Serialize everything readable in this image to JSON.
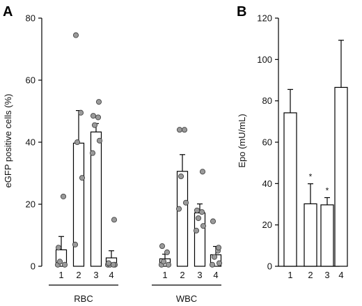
{
  "chart_data": [
    {
      "panel_label": "A",
      "type": "bar",
      "ylabel": "eGFP positive cells (%)",
      "ylim": [
        0,
        80
      ],
      "yticks": [
        0,
        20,
        40,
        60,
        80
      ],
      "groups": [
        {
          "name": "RBC",
          "categories": [
            "1",
            "2",
            "3",
            "4"
          ],
          "means": [
            5.3,
            39.7,
            43.3,
            2.7
          ],
          "sem": [
            4.3,
            10.5,
            2.7,
            2.3
          ],
          "points": [
            [
              0.5,
              0.5,
              1.5,
              22.5,
              6.0
            ],
            [
              7.0,
              28.5,
              40.0,
              49.5,
              74.5
            ],
            [
              36.5,
              40.5,
              45.5,
              48.0,
              48.5,
              53.0
            ],
            [
              0.5,
              0.5,
              0.5,
              0.5,
              1.0,
              15.0
            ]
          ]
        },
        {
          "name": "WBC",
          "categories": [
            "1",
            "2",
            "3",
            "4"
          ],
          "means": [
            2.4,
            30.6,
            17.2,
            3.7
          ],
          "sem": [
            1.5,
            5.4,
            2.9,
            2.7
          ],
          "points": [
            [
              0.5,
              0.5,
              1.5,
              4.5,
              6.5
            ],
            [
              18.5,
              20.5,
              29.0,
              44.0,
              44.0
            ],
            [
              11.5,
              13.0,
              15.5,
              17.5,
              18.0,
              30.5
            ],
            [
              0.5,
              1.0,
              3.0,
              5.0,
              14.5,
              6.0
            ]
          ]
        }
      ]
    },
    {
      "panel_label": "B",
      "type": "bar",
      "ylabel": "Epo (mU/mL)",
      "ylim": [
        0,
        120
      ],
      "yticks": [
        0,
        20,
        40,
        60,
        80,
        100,
        120
      ],
      "categories": [
        "1",
        "2",
        "3",
        "4"
      ],
      "values": [
        74.2,
        30.2,
        29.7,
        86.5
      ],
      "sem": [
        11.3,
        9.7,
        3.5,
        22.8
      ],
      "annotations": [
        "",
        "*",
        "*",
        ""
      ]
    }
  ]
}
